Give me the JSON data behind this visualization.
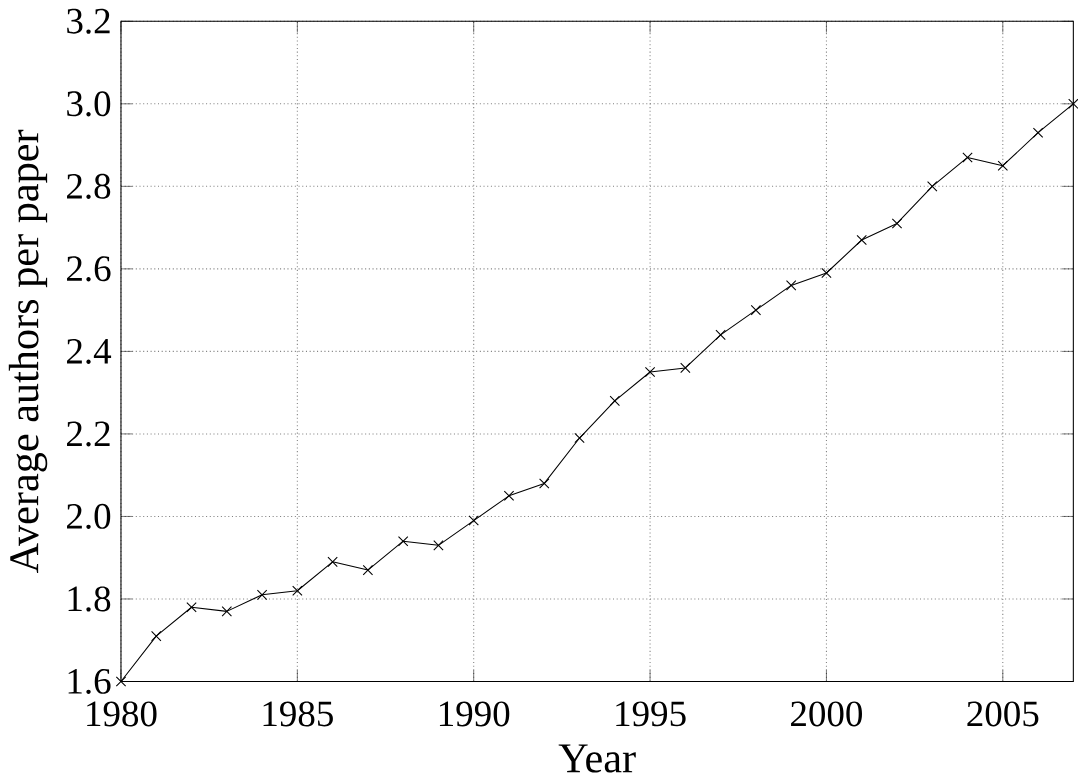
{
  "chart_data": {
    "type": "line",
    "xlabel": "Year",
    "ylabel": "Average authors per paper",
    "x": [
      1980,
      1981,
      1982,
      1983,
      1984,
      1985,
      1986,
      1987,
      1988,
      1989,
      1990,
      1991,
      1992,
      1993,
      1994,
      1995,
      1996,
      1997,
      1998,
      1999,
      2000,
      2001,
      2002,
      2003,
      2004,
      2005,
      2006,
      2007
    ],
    "series": [
      {
        "color": "#000000",
        "values": [
          1.6,
          1.71,
          1.78,
          1.77,
          1.81,
          1.82,
          1.89,
          1.87,
          1.94,
          1.93,
          1.99,
          2.05,
          2.08,
          2.19,
          2.28,
          2.35,
          2.36,
          2.44,
          2.5,
          2.56,
          2.59,
          2.67,
          2.71,
          2.8,
          2.87,
          2.85,
          2.93,
          3.0
        ]
      }
    ],
    "xlim": [
      1980,
      2007
    ],
    "ylim": [
      1.6,
      3.2
    ],
    "xticks": [
      1980,
      1985,
      1990,
      1995,
      2000,
      2005
    ],
    "yticks": [
      {
        "value": 1.6,
        "label": "1.6"
      },
      {
        "value": 1.8,
        "label": "1.8"
      },
      {
        "value": 2.0,
        "label": "2.0"
      },
      {
        "value": 2.2,
        "label": "2.2"
      },
      {
        "value": 2.4,
        "label": "2.4"
      },
      {
        "value": 2.6,
        "label": "2.6"
      },
      {
        "value": 2.8,
        "label": "2.8"
      },
      {
        "value": 3.0,
        "label": "3.0"
      },
      {
        "value": 3.2,
        "label": "3.2"
      }
    ],
    "grid": true,
    "marker": "cross",
    "line_style": "solid"
  }
}
